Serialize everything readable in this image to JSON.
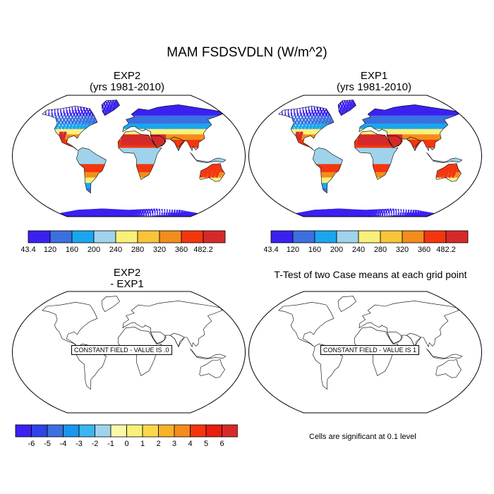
{
  "figure": {
    "title": "MAM FSDSVDLN (W/m^2)"
  },
  "panels": [
    {
      "id": "exp2",
      "title_line1": "EXP2",
      "title_line2": "(yrs 1981-2010)",
      "field": "climatology"
    },
    {
      "id": "exp1",
      "title_line1": "EXP1",
      "title_line2": "(yrs 1981-2010)",
      "field": "climatology"
    },
    {
      "id": "diff",
      "title_line1": "EXP2",
      "title_line2": "- EXP1",
      "field": "constant",
      "constant_label": "CONSTANT FIELD - VALUE IS .0"
    },
    {
      "id": "ttest",
      "title_line1": "T-Test of two Case means at each grid point",
      "title_line2": "",
      "field": "constant",
      "constant_label": "CONSTANT FIELD - VALUE IS 1"
    }
  ],
  "colorbars": {
    "climatology": {
      "labels": [
        "43.4",
        "120",
        "160",
        "200",
        "240",
        "280",
        "320",
        "360",
        "482.2"
      ],
      "colors": [
        "#3a21f0",
        "#3c6fe0",
        "#1aa6ee",
        "#9fd3ec",
        "#f9f07a",
        "#f9c33a",
        "#f28d1d",
        "#f4360f",
        "#d42a2a"
      ]
    },
    "difference": {
      "labels": [
        "-6",
        "-5",
        "-4",
        "-3",
        "-2",
        "-1",
        "0",
        "1",
        "2",
        "3",
        "4",
        "5",
        "6"
      ],
      "colors": [
        "#3a21f0",
        "#2f43e8",
        "#3c6fe0",
        "#1a96ee",
        "#3ab6f0",
        "#9fd3ec",
        "#fbf8a8",
        "#f9f07a",
        "#f9d84a",
        "#f9b12a",
        "#f28d1d",
        "#f4360f",
        "#e81e0e",
        "#d42a2a"
      ]
    }
  },
  "significance_note": "Cells are significant at 0.1 level",
  "palette": {
    "ocean": "#ffffff",
    "coast": "#000000"
  }
}
